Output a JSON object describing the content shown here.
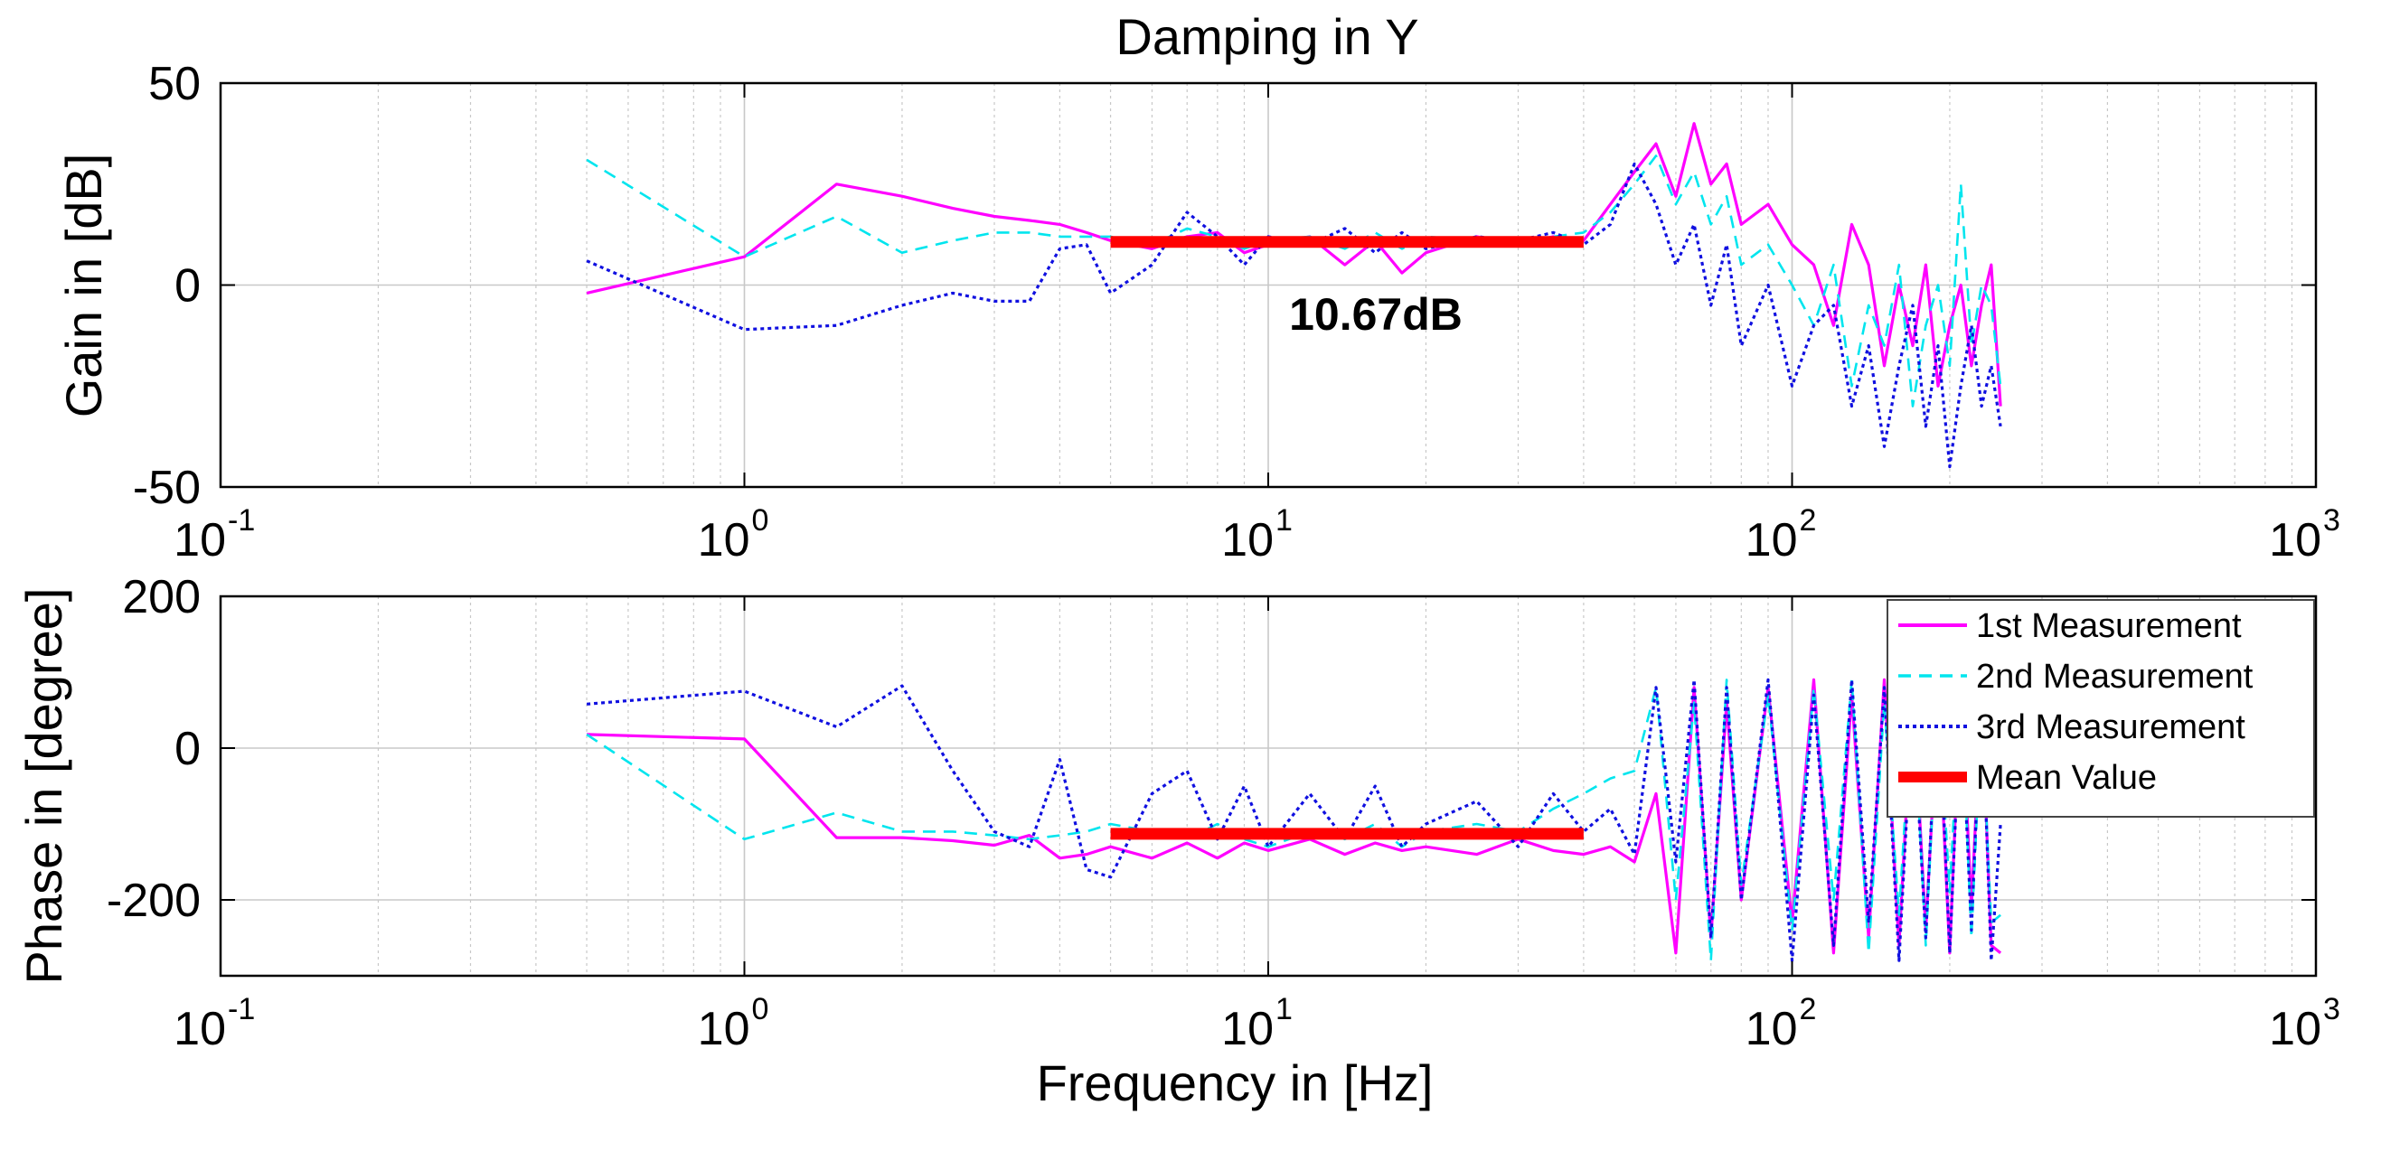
{
  "title": "Damping in Y",
  "xlabel": "Frequency in [Hz]",
  "annotation": "10.67dB",
  "colors": {
    "series1": "#ff00ff",
    "series2": "#00e5ee",
    "series3": "#1010e0",
    "mean": "#ff0000",
    "grid": "#c8c8c8",
    "axis": "#000000"
  },
  "xticks": [
    {
      "value": 0.1,
      "base": "10",
      "exp": "-1"
    },
    {
      "value": 1,
      "base": "10",
      "exp": "0"
    },
    {
      "value": 10,
      "base": "10",
      "exp": "1"
    },
    {
      "value": 100,
      "base": "10",
      "exp": "2"
    },
    {
      "value": 1000,
      "base": "10",
      "exp": "3"
    }
  ],
  "legend": [
    {
      "label": "1st Measurement",
      "style": "solid"
    },
    {
      "label": "2nd Measurement",
      "style": "dashed"
    },
    {
      "label": "3rd Measurement",
      "style": "dotted"
    },
    {
      "label": "Mean Value",
      "style": "thick"
    }
  ],
  "chart_data": [
    {
      "type": "line",
      "name": "gain",
      "xscale": "log",
      "xlim": [
        0.1,
        1000
      ],
      "ylim": [
        -50,
        50
      ],
      "ylabel": "Gain in [dB]",
      "yticks": [
        {
          "value": -50,
          "label": "-50"
        },
        {
          "value": 0,
          "label": "0"
        },
        {
          "value": 50,
          "label": "50"
        }
      ],
      "grid": true,
      "mean": {
        "x": [
          5,
          40
        ],
        "y": 10.67,
        "label": "10.67dB"
      },
      "series": [
        {
          "name": "1st Measurement",
          "x": [
            0.5,
            1,
            1.5,
            2,
            2.5,
            3,
            3.5,
            4,
            4.5,
            5,
            6,
            7,
            8,
            9,
            10,
            12,
            14,
            16,
            18,
            20,
            25,
            30,
            35,
            40,
            45,
            50,
            55,
            60,
            65,
            70,
            75,
            80,
            90,
            100,
            110,
            120,
            130,
            140,
            150,
            160,
            170,
            180,
            190,
            200,
            210,
            220,
            230,
            240,
            250
          ],
          "y": [
            -2,
            7,
            25,
            22,
            19,
            17,
            16,
            15,
            13,
            11,
            9,
            12,
            13,
            8,
            10,
            12,
            5,
            11,
            3,
            8,
            12,
            10,
            12,
            11,
            20,
            28,
            35,
            22,
            40,
            25,
            30,
            15,
            20,
            10,
            5,
            -10,
            15,
            5,
            -20,
            0,
            -15,
            5,
            -25,
            -10,
            0,
            -20,
            -5,
            5,
            -30
          ]
        },
        {
          "name": "2nd Measurement",
          "x": [
            0.5,
            1,
            1.5,
            2,
            2.5,
            3,
            3.5,
            4,
            4.5,
            5,
            6,
            7,
            8,
            9,
            10,
            12,
            14,
            16,
            18,
            20,
            25,
            30,
            35,
            40,
            45,
            50,
            55,
            60,
            65,
            70,
            75,
            80,
            90,
            100,
            110,
            120,
            130,
            140,
            150,
            160,
            170,
            180,
            190,
            200,
            210,
            220,
            230,
            240,
            250
          ],
          "y": [
            31,
            7,
            17,
            8,
            11,
            13,
            13,
            12,
            12,
            12,
            10,
            14,
            12,
            9,
            11,
            12,
            9,
            13,
            9,
            12,
            11,
            10,
            12,
            13,
            18,
            25,
            32,
            20,
            28,
            15,
            22,
            5,
            10,
            0,
            -10,
            5,
            -25,
            -5,
            -15,
            5,
            -30,
            -10,
            0,
            -20,
            25,
            -15,
            0,
            -5,
            -25
          ]
        },
        {
          "name": "3rd Measurement",
          "x": [
            0.5,
            1,
            1.5,
            2,
            2.5,
            3,
            3.5,
            4,
            4.5,
            5,
            6,
            7,
            8,
            9,
            10,
            12,
            14,
            16,
            18,
            20,
            25,
            30,
            35,
            40,
            45,
            50,
            55,
            60,
            65,
            70,
            75,
            80,
            90,
            100,
            110,
            120,
            130,
            140,
            150,
            160,
            170,
            180,
            190,
            200,
            210,
            220,
            230,
            240,
            250
          ],
          "y": [
            6,
            -11,
            -10,
            -5,
            -2,
            -4,
            -4,
            9,
            10,
            -2,
            5,
            18,
            12,
            5,
            12,
            10,
            14,
            8,
            13,
            9,
            12,
            11,
            13,
            10,
            15,
            30,
            20,
            5,
            15,
            -5,
            10,
            -15,
            0,
            -25,
            -10,
            -5,
            -30,
            -15,
            -40,
            -20,
            -5,
            -35,
            -15,
            -45,
            -25,
            -10,
            -30,
            -20,
            -35
          ]
        }
      ]
    },
    {
      "type": "line",
      "name": "phase",
      "xscale": "log",
      "xlim": [
        0.1,
        1000
      ],
      "ylim": [
        -300,
        200
      ],
      "ylabel": "Phase in [degree]",
      "yticks": [
        {
          "value": -200,
          "label": "-200"
        },
        {
          "value": 0,
          "label": "0"
        },
        {
          "value": 200,
          "label": "200"
        }
      ],
      "grid": true,
      "mean": {
        "x": [
          5,
          40
        ],
        "y": -113
      },
      "series": [
        {
          "name": "1st Measurement",
          "x": [
            0.5,
            1,
            1.5,
            2,
            2.5,
            3,
            3.5,
            4,
            4.5,
            5,
            6,
            7,
            8,
            9,
            10,
            12,
            14,
            16,
            18,
            20,
            25,
            30,
            35,
            40,
            45,
            50,
            55,
            60,
            65,
            70,
            75,
            80,
            90,
            100,
            110,
            120,
            130,
            140,
            150,
            160,
            170,
            180,
            190,
            200,
            210,
            220,
            230,
            240,
            250
          ],
          "y": [
            18,
            12,
            -118,
            -118,
            -122,
            -128,
            -115,
            -145,
            -140,
            -130,
            -145,
            -125,
            -145,
            -125,
            -135,
            -120,
            -140,
            -125,
            -135,
            -130,
            -140,
            -120,
            -135,
            -140,
            -130,
            -150,
            -60,
            -270,
            80,
            -250,
            60,
            -200,
            80,
            -230,
            90,
            -270,
            70,
            -250,
            90,
            -260,
            80,
            -240,
            60,
            -270,
            90,
            -210,
            70,
            -260,
            -270
          ]
        },
        {
          "name": "2nd Measurement",
          "x": [
            0.5,
            1,
            1.5,
            2,
            2.5,
            3,
            3.5,
            4,
            4.5,
            5,
            6,
            7,
            8,
            9,
            10,
            12,
            14,
            16,
            18,
            20,
            25,
            30,
            35,
            40,
            45,
            50,
            55,
            60,
            65,
            70,
            75,
            80,
            90,
            100,
            110,
            120,
            130,
            140,
            150,
            160,
            170,
            180,
            190,
            200,
            210,
            220,
            230,
            240,
            250
          ],
          "y": [
            18,
            -120,
            -85,
            -110,
            -110,
            -115,
            -120,
            -115,
            -110,
            -100,
            -110,
            -120,
            -100,
            -120,
            -130,
            -110,
            -120,
            -100,
            -130,
            -110,
            -100,
            -110,
            -80,
            -60,
            -40,
            -30,
            80,
            -200,
            60,
            -280,
            90,
            -180,
            70,
            -240,
            80,
            -200,
            90,
            -270,
            60,
            -220,
            80,
            -260,
            70,
            -190,
            90,
            -250,
            50,
            -230,
            -220
          ]
        },
        {
          "name": "3rd Measurement",
          "x": [
            0.5,
            1,
            1.5,
            2,
            2.5,
            3,
            3.5,
            4,
            4.5,
            5,
            6,
            7,
            8,
            9,
            10,
            12,
            14,
            16,
            18,
            20,
            25,
            30,
            35,
            40,
            45,
            50,
            55,
            60,
            65,
            70,
            75,
            80,
            90,
            100,
            110,
            120,
            130,
            140,
            150,
            160,
            170,
            180,
            190,
            200,
            210,
            220,
            230,
            240,
            250
          ],
          "y": [
            58,
            75,
            28,
            82,
            -30,
            -110,
            -130,
            -15,
            -160,
            -170,
            -60,
            -30,
            -120,
            -50,
            -130,
            -60,
            -120,
            -50,
            -130,
            -100,
            -70,
            -130,
            -60,
            -110,
            -80,
            -140,
            80,
            -150,
            90,
            -250,
            80,
            -200,
            90,
            -280,
            70,
            -260,
            90,
            -230,
            80,
            -280,
            60,
            -250,
            90,
            -270,
            70,
            -240,
            80,
            -280,
            -100
          ]
        }
      ]
    }
  ]
}
